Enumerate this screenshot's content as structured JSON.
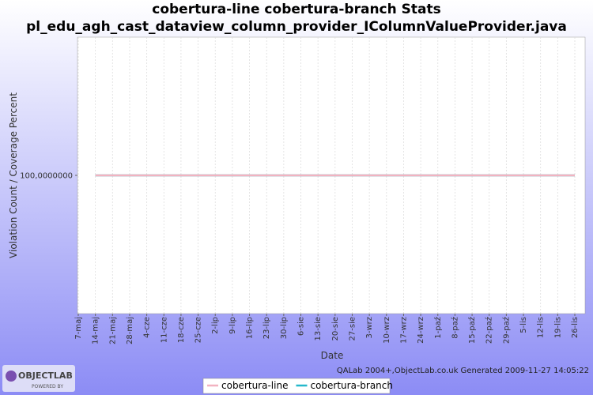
{
  "chart_data": {
    "type": "line",
    "title": "cobertura-line cobertura-branch  Stats",
    "subtitle": "pl_edu_agh_cast_dataview_column_provider_IColumnValueProvider.java",
    "x_label": "Date",
    "y_label": "Violation Count / Coverage Percent",
    "categories": [
      "7-maj",
      "14-maj",
      "21-maj",
      "28-maj",
      "4-cze",
      "11-cze",
      "18-cze",
      "25-cze",
      "2-lip",
      "9-lip",
      "16-lip",
      "23-lip",
      "30-lip",
      "6-sie",
      "13-sie",
      "20-sie",
      "27-sie",
      "3-wrz",
      "10-wrz",
      "17-wrz",
      "24-wrz",
      "1-paź",
      "8-paź",
      "15-paź",
      "22-paź",
      "29-paź",
      "5-lis",
      "12-lis",
      "19-lis",
      "26-lis"
    ],
    "series": [
      {
        "name": "cobertura-line",
        "color": "#f2b3c0",
        "values": [
          null,
          100,
          100,
          100,
          100,
          100,
          100,
          100,
          100,
          100,
          100,
          100,
          100,
          100,
          100,
          100,
          100,
          100,
          100,
          100,
          100,
          100,
          100,
          100,
          100,
          100,
          100,
          100,
          100,
          100
        ]
      },
      {
        "name": "cobertura-branch",
        "color": "#26b8cc",
        "values": [
          null,
          100,
          100,
          100,
          100,
          100,
          100,
          100,
          100,
          100,
          100,
          100,
          100,
          100,
          100,
          100,
          100,
          100,
          100,
          100,
          100,
          100,
          100,
          100,
          100,
          100,
          100,
          100,
          100,
          100
        ]
      }
    ],
    "ylim": [
      0,
      200
    ],
    "yticks": [
      {
        "value": 100,
        "label": "100,0000000"
      }
    ],
    "grid": true,
    "legend": "bottom",
    "footer": "QALab 2004+,ObjectLab.co.uk Generated 2009-11-27 14:05:22"
  },
  "logo": {
    "text": "OBJECTLAB",
    "subtext": "POWERED BY"
  }
}
